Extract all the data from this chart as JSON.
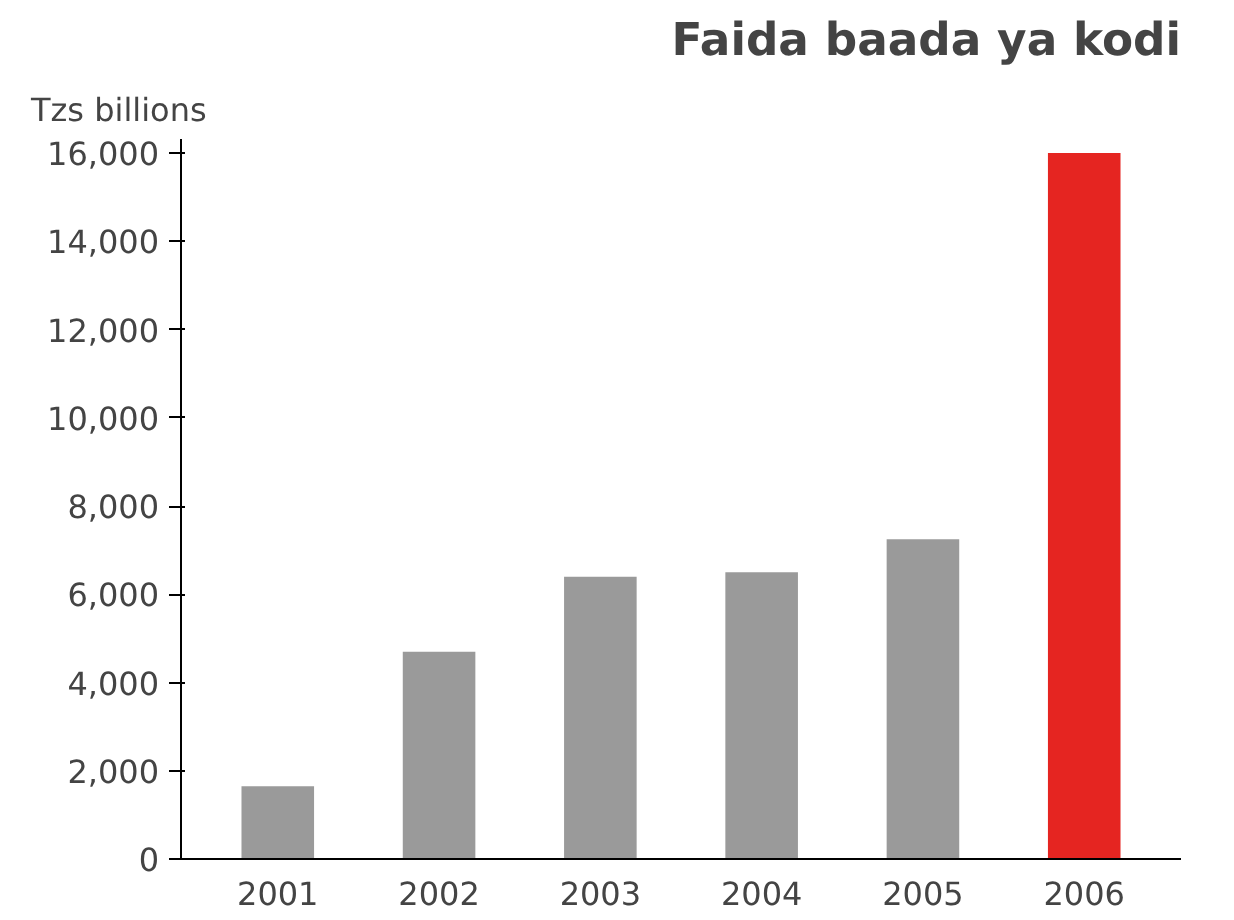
{
  "chart_data": {
    "type": "bar",
    "title": "Faida baada ya kodi",
    "ylabel": "Tzs billions",
    "categories": [
      "2001",
      "2002",
      "2003",
      "2004",
      "2005",
      "2006"
    ],
    "values": [
      1650,
      4700,
      6400,
      6500,
      7250,
      16000
    ],
    "colors": [
      "#9a9a9a",
      "#9a9a9a",
      "#9a9a9a",
      "#9a9a9a",
      "#9a9a9a",
      "#e52521"
    ],
    "ylim": [
      0,
      16000
    ],
    "yticks": [
      {
        "value": 0,
        "label": "0"
      },
      {
        "value": 2000,
        "label": "2,000"
      },
      {
        "value": 4000,
        "label": "4,000"
      },
      {
        "value": 6000,
        "label": "6,000"
      },
      {
        "value": 8000,
        "label": "8,000"
      },
      {
        "value": 10000,
        "label": "10,000"
      },
      {
        "value": 12000,
        "label": "12,000"
      },
      {
        "value": 14000,
        "label": "14,000"
      },
      {
        "value": 16000,
        "label": "16,000"
      }
    ],
    "grid": false
  }
}
